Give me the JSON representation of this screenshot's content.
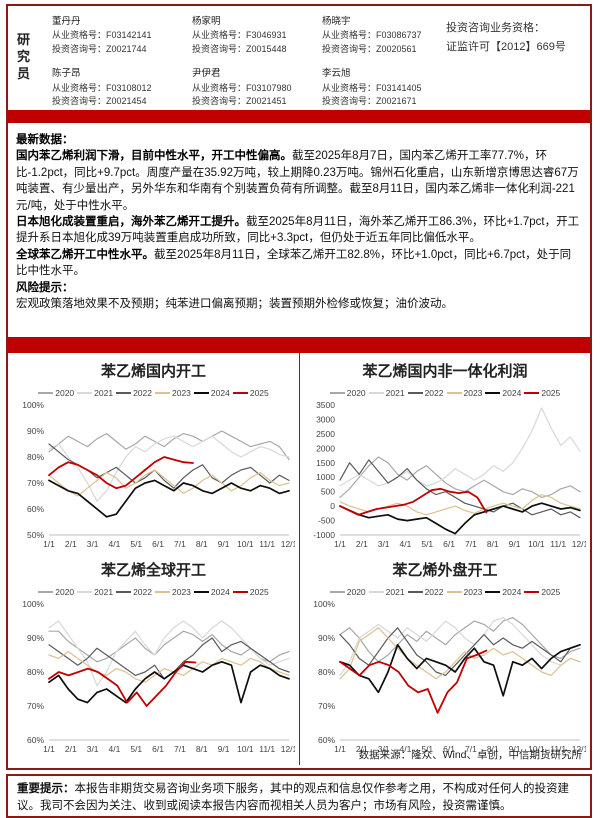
{
  "page": {
    "researcher_label": "研究员",
    "qualification_line1": "投资咨询业务资格：",
    "qualification_line2": "证监许可【2012】669号",
    "researchers": [
      {
        "name": "董丹丹",
        "line1": "从业资格号：F03142141",
        "line2": "投资咨询号：Z0021744"
      },
      {
        "name": "杨家明",
        "line1": "从业资格号：F3046931",
        "line2": "投资咨询号：Z0015448"
      },
      {
        "name": "杨晓宇",
        "line1": "从业资格号：F03086737",
        "line2": "投资咨询号：Z0020561"
      },
      {
        "name": "陈子昂",
        "line1": "从业资格号：F03108012",
        "line2": "投资咨询号：Z0021454"
      },
      {
        "name": "尹伊君",
        "line1": "从业资格号：F03107980",
        "line2": "投资咨询号：Z0021451"
      },
      {
        "name": "李云旭",
        "line1": "从业资格号：F03141405",
        "line2": "投资咨询号：Z0021671"
      }
    ]
  },
  "latest": {
    "heading": "最新数据：",
    "paragraphs": [
      {
        "bold": "国内苯乙烯利润下滑，目前中性水平，开工中性偏高。",
        "text": "截至2025年8月7日，国内苯乙烯开工率77.7%，环比-1.2pct，同比+9.7pct。周度产量在35.92万吨，较上期降0.23万吨。锦州石化重启，山东新增京博思达睿67万吨装置、有少量出产，另外华东和华南有个别装置负荷有所调整。截至8月11日，国内苯乙烯非一体化利润-221元/吨，处于中性水平。"
      },
      {
        "bold": "日本旭化成装置重启，海外苯乙烯开工提升。",
        "text": "截至2025年8月11日，海外苯乙烯开工86.3%，环比+1.7pct，开工提升系日本旭化成39万吨装置重启成功所致，同比+3.3pct，但仍处于近五年同比偏低水平。"
      },
      {
        "bold": "全球苯乙烯开工中性水平。",
        "text": "截至2025年8月11日，全球苯乙烯开工82.8%，环比+1.0pct，同比+6.7pct，处于同比中性水平。"
      }
    ],
    "risk_heading": "风险提示：",
    "risk_text": "宏观政策落地效果不及预期；纯苯进口偏离预期；装置预期外检修或恢复；油价波动。"
  },
  "charts_source": "数据来源：隆众、Wind、卓创，中信期货研究所",
  "footer": {
    "bold": "重要提示：",
    "text": "本报告非期货交易咨询业务项下服务，其中的观点和信息仅作参考之用，不构成对任何人的投资建议。我司不会因为关注、收到或阅读本报告内容而视相关人员为客户；市场有风险，投资需谨慎。"
  },
  "colors": {
    "accent_red": "#c00000",
    "frame_maroon": "#8a1a14",
    "axis_gray": "#bfbfbf"
  },
  "chart_data": [
    {
      "type": "line",
      "title": "苯乙烯国内开工",
      "ylabel": "开工率(%)",
      "ymin": 50,
      "ymax": 100,
      "y_tick_values": [
        100,
        90,
        80,
        70,
        60,
        50
      ],
      "y_tick_labels": [
        "100%",
        "90%",
        "80%",
        "70%",
        "60%",
        "50%"
      ],
      "x_labels": [
        "1/1",
        "2/1",
        "3/1",
        "4/1",
        "5/1",
        "6/1",
        "7/1",
        "8/1",
        "9/1",
        "10/1",
        "11/1",
        "12/1"
      ],
      "legend_position": "top",
      "grid": false,
      "series": [
        {
          "name": "2020",
          "color": "#a8a8a8",
          "xend": 1,
          "values": [
            82,
            85,
            88,
            86,
            84,
            87,
            89,
            86,
            83,
            85,
            88,
            86,
            84,
            87,
            89,
            88,
            86,
            88,
            90,
            88,
            86,
            84,
            85,
            86,
            84,
            79
          ]
        },
        {
          "name": "2021",
          "color": "#d8d8d8",
          "xend": 1,
          "values": [
            83,
            85,
            80,
            76,
            70,
            63,
            67,
            74,
            80,
            84,
            82,
            85,
            87,
            88,
            86,
            84,
            86,
            88,
            85,
            82,
            80,
            82,
            84,
            83,
            81,
            80
          ]
        },
        {
          "name": "2022",
          "color": "#5a5a5a",
          "xend": 1,
          "values": [
            85,
            82,
            79,
            77,
            75,
            72,
            74,
            76,
            73,
            70,
            72,
            75,
            71,
            68,
            72,
            75,
            77,
            72,
            70,
            73,
            75,
            76,
            73,
            70,
            73,
            71
          ]
        },
        {
          "name": "2023",
          "color": "#ddc18f",
          "xend": 1,
          "values": [
            73,
            70,
            67,
            65,
            68,
            71,
            74,
            72,
            68,
            70,
            73,
            75,
            72,
            69,
            66,
            68,
            71,
            73,
            70,
            67,
            69,
            72,
            74,
            71,
            69,
            70
          ]
        },
        {
          "name": "2024",
          "color": "#0d0d0d",
          "xend": 1,
          "values": [
            71,
            69,
            67,
            66,
            63,
            60,
            57,
            58,
            63,
            68,
            70,
            71,
            69,
            67,
            70,
            69,
            67,
            66,
            68,
            70,
            68,
            67,
            69,
            68,
            66,
            67
          ]
        },
        {
          "name": "2025",
          "color": "#c00000",
          "xend": 0.6,
          "values": [
            73,
            76,
            78,
            77,
            75,
            73,
            70,
            68,
            69,
            72,
            75,
            78,
            80,
            79,
            78,
            77.7
          ]
        }
      ]
    },
    {
      "type": "line",
      "title": "苯乙烯国内非一体化利润",
      "ylabel": "利润(元/吨)",
      "ymin": -1000,
      "ymax": 3500,
      "y_tick_values": [
        3500,
        3000,
        2500,
        2000,
        1500,
        1000,
        500,
        0,
        -500,
        -1000
      ],
      "y_tick_labels": [
        "3500",
        "3000",
        "2500",
        "2000",
        "1500",
        "1000",
        "500",
        "0",
        "-500",
        "-1000"
      ],
      "x_labels": [
        "1/1",
        "2/1",
        "3/1",
        "4/1",
        "5/1",
        "6/1",
        "7/1",
        "8/1",
        "9/1",
        "10/1",
        "11/1",
        "12/1"
      ],
      "legend_position": "top",
      "grid": false,
      "series": [
        {
          "name": "2020",
          "color": "#a8a8a8",
          "xend": 1,
          "values": [
            300,
            600,
            1000,
            1400,
            1700,
            1500,
            1100,
            900,
            1200,
            1400,
            1100,
            800,
            600,
            500,
            700,
            900,
            700,
            500,
            400,
            600,
            500,
            300,
            400,
            600,
            700,
            500
          ]
        },
        {
          "name": "2021",
          "color": "#d8d8d8",
          "xend": 1,
          "values": [
            700,
            900,
            1100,
            900,
            700,
            800,
            1000,
            1200,
            900,
            700,
            800,
            1000,
            1300,
            1100,
            900,
            1100,
            1400,
            1200,
            1500,
            2000,
            2600,
            3400,
            2700,
            2100,
            2400,
            1900
          ]
        },
        {
          "name": "2022",
          "color": "#5a5a5a",
          "xend": 1,
          "values": [
            900,
            1500,
            1100,
            1600,
            1200,
            800,
            1000,
            1300,
            900,
            600,
            400,
            500,
            300,
            100,
            0,
            -100,
            -200,
            0,
            100,
            -100,
            -300,
            -200,
            -100,
            -300,
            -200,
            -400
          ]
        },
        {
          "name": "2023",
          "color": "#ddc18f",
          "xend": 1,
          "values": [
            150,
            0,
            -100,
            -200,
            -100,
            0,
            100,
            0,
            -200,
            -300,
            -200,
            -100,
            0,
            -150,
            -250,
            -100,
            0,
            100,
            0,
            -100,
            200,
            400,
            300,
            100,
            0,
            -100
          ]
        },
        {
          "name": "2024",
          "color": "#0d0d0d",
          "xend": 1,
          "values": [
            0,
            -150,
            -300,
            -400,
            -350,
            -300,
            -450,
            -500,
            -450,
            -400,
            -600,
            -800,
            -950,
            -600,
            -300,
            -200,
            -100,
            0,
            -100,
            -200,
            0,
            100,
            0,
            -100,
            -50,
            -150
          ]
        },
        {
          "name": "2025",
          "color": "#c00000",
          "xend": 0.61,
          "values": [
            0,
            -150,
            -300,
            -200,
            -100,
            -50,
            0,
            50,
            150,
            350,
            550,
            600,
            500,
            450,
            500,
            300,
            -221
          ]
        }
      ]
    },
    {
      "type": "line",
      "title": "苯乙烯全球开工",
      "ylabel": "开工率(%)",
      "ymin": 60,
      "ymax": 100,
      "y_tick_values": [
        100,
        90,
        80,
        70,
        60
      ],
      "y_tick_labels": [
        "100%",
        "90%",
        "80%",
        "70%",
        "60%"
      ],
      "x_labels": [
        "1/1",
        "2/1",
        "3/1",
        "4/1",
        "5/1",
        "6/1",
        "7/1",
        "8/1",
        "9/1",
        "10/1",
        "11/1",
        "12/1"
      ],
      "legend_position": "top",
      "grid": false,
      "series": [
        {
          "name": "2020",
          "color": "#a8a8a8",
          "xend": 1,
          "values": [
            92,
            92,
            89,
            87,
            85,
            83,
            84,
            86,
            88,
            90,
            87,
            85,
            88,
            90,
            92,
            91,
            89,
            91,
            88,
            86,
            85,
            87,
            84,
            83,
            85,
            86
          ]
        },
        {
          "name": "2021",
          "color": "#d8d8d8",
          "xend": 1,
          "values": [
            93,
            95,
            91,
            87,
            83,
            76,
            80,
            86,
            89,
            92,
            88,
            85,
            90,
            93,
            95,
            93,
            90,
            93,
            95,
            93,
            90,
            87,
            84,
            82,
            83,
            84
          ]
        },
        {
          "name": "2022",
          "color": "#5a5a5a",
          "xend": 1,
          "values": [
            88,
            86,
            84,
            82,
            84,
            87,
            85,
            83,
            81,
            79,
            80,
            82,
            78,
            80,
            83,
            85,
            88,
            90,
            86,
            88,
            89,
            87,
            85,
            83,
            81,
            80
          ]
        },
        {
          "name": "2023",
          "color": "#ddc18f",
          "xend": 1,
          "values": [
            85,
            84,
            86,
            84,
            82,
            80,
            79,
            81,
            80,
            78,
            77,
            79,
            81,
            80,
            79,
            81,
            83,
            82,
            84,
            83,
            82,
            84,
            83,
            81,
            80,
            79
          ]
        },
        {
          "name": "2024",
          "color": "#0d0d0d",
          "xend": 1,
          "values": [
            77,
            79,
            75,
            72,
            71,
            74,
            75,
            73,
            71,
            75,
            78,
            80,
            78,
            80,
            82,
            81,
            80,
            82,
            83,
            82,
            71,
            80,
            82,
            81,
            79,
            78
          ]
        },
        {
          "name": "2025",
          "color": "#c00000",
          "xend": 0.61,
          "values": [
            78,
            80,
            79,
            80,
            81,
            80,
            78,
            76,
            71,
            74,
            70,
            73,
            76,
            80,
            83,
            82.8
          ]
        }
      ]
    },
    {
      "type": "line",
      "title": "苯乙烯外盘开工",
      "ylabel": "开工率(%)",
      "ymin": 60,
      "ymax": 100,
      "y_tick_values": [
        100,
        90,
        80,
        70,
        60
      ],
      "y_tick_labels": [
        "100%",
        "90%",
        "80%",
        "70%",
        "60%"
      ],
      "x_labels": [
        "1/1",
        "2/1",
        "3/1",
        "4/1",
        "5/1",
        "6/1",
        "7/1",
        "8/1",
        "9/1",
        "10/1",
        "11/1",
        "12/1"
      ],
      "legend_position": "top",
      "grid": false,
      "series": [
        {
          "name": "2020",
          "color": "#a8a8a8",
          "xend": 1,
          "values": [
            91,
            93,
            90,
            86,
            83,
            85,
            88,
            91,
            89,
            92,
            90,
            88,
            91,
            93,
            95,
            94,
            92,
            95,
            96,
            94,
            91,
            88,
            85,
            84,
            86,
            87
          ]
        },
        {
          "name": "2021",
          "color": "#d8d8d8",
          "xend": 1,
          "values": [
            79,
            83,
            90,
            92,
            94,
            92,
            90,
            93,
            91,
            89,
            92,
            95,
            93,
            90,
            88,
            91,
            95,
            96,
            94,
            91,
            88,
            85,
            83,
            82,
            84,
            83
          ]
        },
        {
          "name": "2022",
          "color": "#5a5a5a",
          "xend": 1,
          "values": [
            91,
            88,
            84,
            82,
            86,
            90,
            93,
            89,
            85,
            83,
            80,
            79,
            82,
            85,
            88,
            91,
            88,
            90,
            88,
            87,
            89,
            87,
            85,
            83,
            87,
            88
          ]
        },
        {
          "name": "2023",
          "color": "#ddc18f",
          "xend": 1,
          "values": [
            78,
            81,
            89,
            91,
            93,
            90,
            87,
            84,
            82,
            80,
            78,
            80,
            83,
            86,
            84,
            85,
            87,
            85,
            86,
            84,
            82,
            80,
            79,
            82,
            84,
            83
          ]
        },
        {
          "name": "2024",
          "color": "#0d0d0d",
          "xend": 1,
          "values": [
            83,
            82,
            79,
            78,
            74,
            80,
            88,
            84,
            81,
            84,
            83,
            82,
            80,
            84,
            87,
            83,
            82,
            73,
            83,
            82,
            84,
            81,
            84,
            86,
            87,
            88
          ]
        },
        {
          "name": "2025",
          "color": "#c00000",
          "xend": 0.61,
          "values": [
            83,
            81,
            79,
            82,
            83,
            82,
            80,
            76,
            74,
            75,
            68,
            74,
            77,
            84,
            85,
            86.3
          ]
        }
      ]
    }
  ]
}
